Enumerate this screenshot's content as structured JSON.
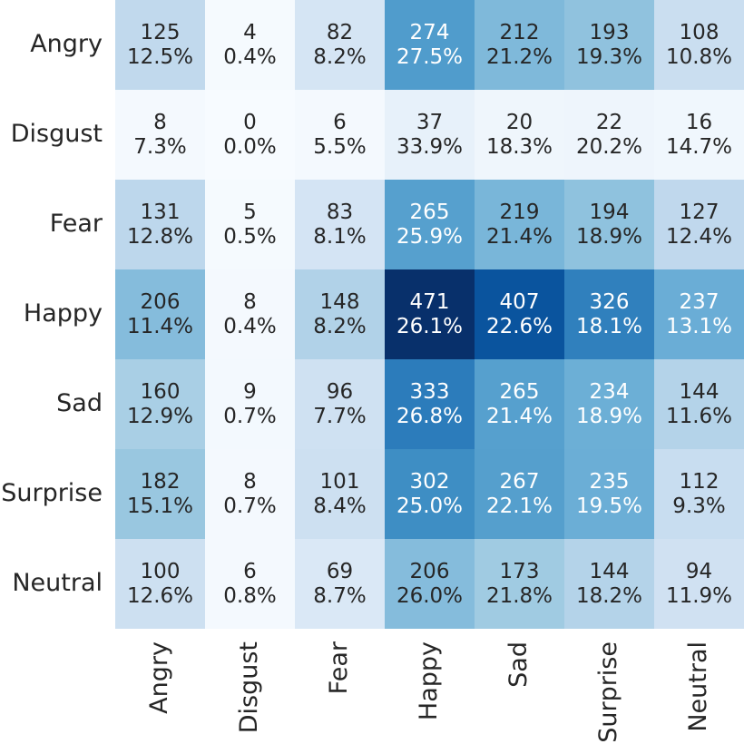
{
  "chart_data": {
    "type": "heatmap",
    "colormap": "Blues",
    "grid": false,
    "legend": "none",
    "value_range": [
      0,
      471
    ],
    "rows": [
      "Angry",
      "Disgust",
      "Fear",
      "Happy",
      "Sad",
      "Surprise",
      "Neutral"
    ],
    "columns": [
      "Angry",
      "Disgust",
      "Fear",
      "Happy",
      "Sad",
      "Surprise",
      "Neutral"
    ],
    "counts": [
      [
        125,
        4,
        82,
        274,
        212,
        193,
        108
      ],
      [
        8,
        0,
        6,
        37,
        20,
        22,
        16
      ],
      [
        131,
        5,
        83,
        265,
        219,
        194,
        127
      ],
      [
        206,
        8,
        148,
        471,
        407,
        326,
        237
      ],
      [
        160,
        9,
        96,
        333,
        265,
        234,
        144
      ],
      [
        182,
        8,
        101,
        302,
        267,
        235,
        112
      ],
      [
        100,
        6,
        69,
        206,
        173,
        144,
        94
      ]
    ],
    "percent_labels": [
      [
        "12.5%",
        "0.4%",
        "8.2%",
        "27.5%",
        "21.2%",
        "19.3%",
        "10.8%"
      ],
      [
        "7.3%",
        "0.0%",
        "5.5%",
        "33.9%",
        "18.3%",
        "20.2%",
        "14.7%"
      ],
      [
        "12.8%",
        "0.5%",
        "8.1%",
        "25.9%",
        "21.4%",
        "18.9%",
        "12.4%"
      ],
      [
        "11.4%",
        "0.4%",
        "8.2%",
        "26.1%",
        "22.6%",
        "18.1%",
        "13.1%"
      ],
      [
        "12.9%",
        "0.7%",
        "7.7%",
        "26.8%",
        "21.4%",
        "18.9%",
        "11.6%"
      ],
      [
        "15.1%",
        "0.7%",
        "8.4%",
        "25.0%",
        "22.1%",
        "19.5%",
        "9.3%"
      ],
      [
        "12.6%",
        "0.8%",
        "8.7%",
        "26.0%",
        "21.8%",
        "18.2%",
        "11.9%"
      ]
    ],
    "colors": {
      "text_dark": "#262626",
      "text_light": "#ffffff"
    }
  }
}
